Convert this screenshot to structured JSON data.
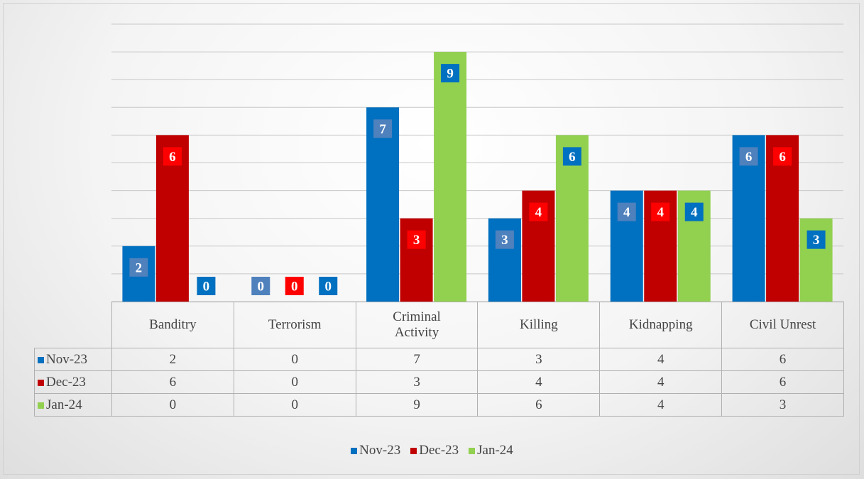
{
  "chart_data": {
    "type": "bar",
    "categories": [
      "Banditry",
      "Terrorism",
      "Criminal Activity",
      "Killing",
      "Kidnapping",
      "Civil Unrest"
    ],
    "series": [
      {
        "name": "Nov-23",
        "color": "#0070c0",
        "label_color": "#4f81bd",
        "values": [
          2,
          0,
          7,
          3,
          4,
          6
        ]
      },
      {
        "name": "Dec-23",
        "color": "#c00000",
        "label_color": "#ff0000",
        "values": [
          6,
          0,
          3,
          4,
          4,
          6
        ]
      },
      {
        "name": "Jan-24",
        "color": "#92d050",
        "label_color": "#0070c0",
        "values": [
          0,
          0,
          9,
          6,
          4,
          3
        ]
      }
    ],
    "ylim": [
      0,
      10
    ],
    "yticks": [
      0,
      1,
      2,
      3,
      4,
      5,
      6,
      7,
      8,
      9,
      10
    ],
    "grid": true,
    "legend": "bottom",
    "data_table": true
  }
}
